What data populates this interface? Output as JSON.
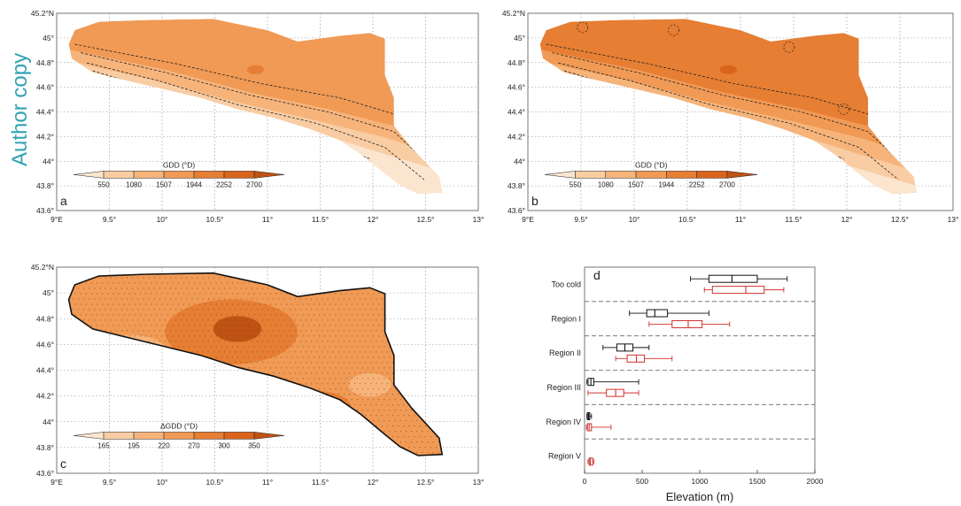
{
  "watermark": "Author copy",
  "colors": {
    "watermark": "#33a3b2",
    "ramp": [
      "#fbe5cf",
      "#f9cda3",
      "#f6b47b",
      "#f09a55",
      "#e67e33",
      "#d9651c",
      "#bf5314"
    ],
    "box_black": "#111111",
    "box_red": "#d0312d",
    "frame": "#555555",
    "grid": "#888888"
  },
  "map_axes": {
    "lon_ticks": [
      "9°E",
      "9.5°",
      "10°",
      "10.5°",
      "11°",
      "11.5°",
      "12°",
      "12.5°",
      "13°"
    ],
    "lat_ticks": [
      "45.2°N",
      "45°",
      "44.8°",
      "44.6°",
      "44.4°",
      "44.2°",
      "44°",
      "43.8°",
      "43.6°"
    ]
  },
  "panels": [
    {
      "letter": "a",
      "colorbar_title": "GDD (°D)",
      "colorbar_labels": [
        "550",
        "1080",
        "1507",
        "1944",
        "2252",
        "2700"
      ]
    },
    {
      "letter": "b",
      "colorbar_title": "GDD (°D)",
      "colorbar_labels": [
        "550",
        "1080",
        "1507",
        "1944",
        "2252",
        "2700"
      ]
    },
    {
      "letter": "c",
      "colorbar_title": "ΔGDD (°D)",
      "colorbar_labels": [
        "165",
        "195",
        "220",
        "270",
        "300",
        "350"
      ]
    }
  ],
  "chart_data": {
    "type": "box",
    "panel_letter": "d",
    "xlabel": "Elevation (m)",
    "xlim": [
      0,
      2000
    ],
    "xticks": [
      "0",
      "500",
      "1000",
      "1500",
      "2000"
    ],
    "categories": [
      "Too cold",
      "Region I",
      "Region II",
      "Region III",
      "Region IV",
      "Region V"
    ],
    "series": [
      {
        "color": "#111111",
        "boxes": [
          {
            "min": 920,
            "q1": 1080,
            "median": 1280,
            "q3": 1500,
            "max": 1760
          },
          {
            "min": 390,
            "q1": 540,
            "median": 610,
            "q3": 720,
            "max": 1080
          },
          {
            "min": 160,
            "q1": 280,
            "median": 350,
            "q3": 420,
            "max": 560
          },
          {
            "min": 20,
            "q1": 30,
            "median": 55,
            "q3": 80,
            "max": 470
          },
          {
            "min": 20,
            "q1": 25,
            "median": 35,
            "q3": 45,
            "max": 60
          },
          null
        ]
      },
      {
        "color": "#d0312d",
        "boxes": [
          {
            "min": 1040,
            "q1": 1110,
            "median": 1400,
            "q3": 1560,
            "max": 1730
          },
          {
            "min": 560,
            "q1": 760,
            "median": 900,
            "q3": 1020,
            "max": 1260
          },
          {
            "min": 270,
            "q1": 370,
            "median": 450,
            "q3": 520,
            "max": 760
          },
          {
            "min": 30,
            "q1": 190,
            "median": 270,
            "q3": 340,
            "max": 470
          },
          {
            "min": 15,
            "q1": 25,
            "median": 40,
            "q3": 60,
            "max": 230
          },
          {
            "min": 30,
            "q1": 40,
            "median": 50,
            "q3": 70,
            "max": 80
          }
        ]
      }
    ]
  }
}
